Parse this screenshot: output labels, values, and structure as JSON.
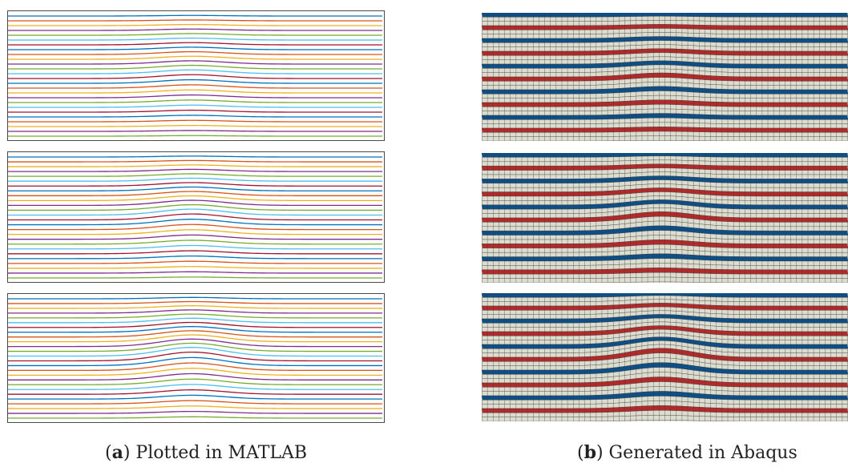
{
  "figure": {
    "captions": [
      {
        "letter": "a",
        "text": ") Plotted in MATLAB",
        "open": "("
      },
      {
        "letter": "b",
        "text": ") Generated in Abaqus",
        "open": "("
      }
    ],
    "matlab_line_colors": [
      "#0072BD",
      "#D95319",
      "#EDB120",
      "#7E2F8E",
      "#77AC30",
      "#4DBEEE",
      "#A2142F"
    ],
    "abaqus_layer_colors": {
      "blue": "#0d4f86",
      "red": "#b32a2a",
      "light": "#dcdccf",
      "mesh_line": "#3a3a3a"
    },
    "wave_amplitudes": [
      0.55,
      0.85,
      1.25
    ]
  }
}
